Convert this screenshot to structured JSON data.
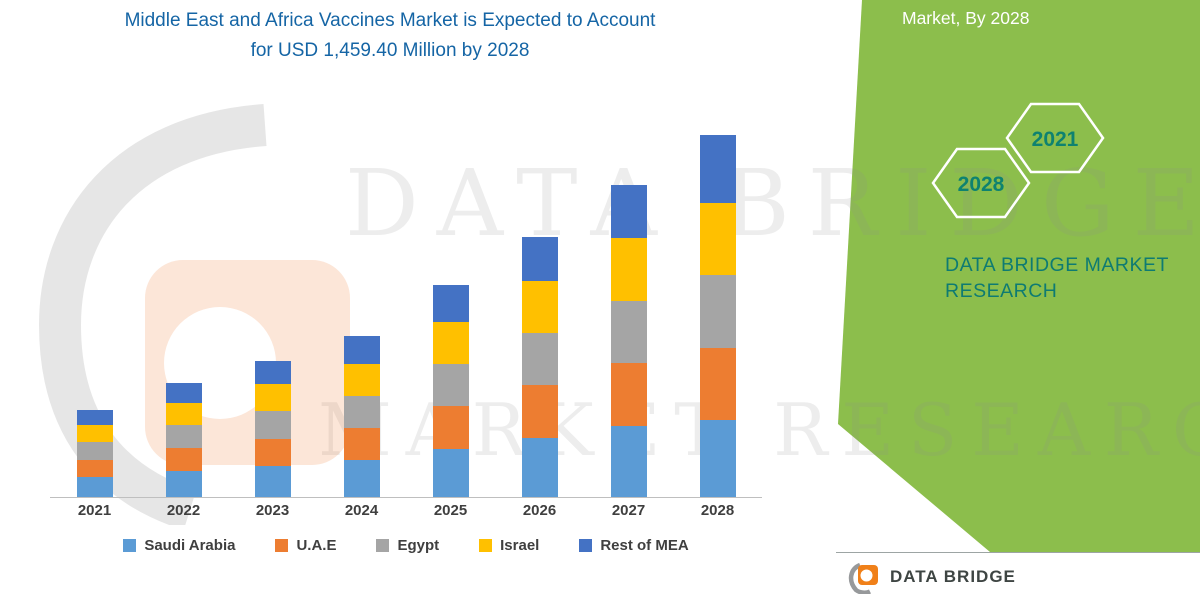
{
  "title": {
    "line1": "Middle East and Africa Vaccines Market is Expected to Account",
    "line2": "for USD 1,459.40 Million by 2028",
    "color": "#1565A5"
  },
  "side_panel": {
    "heading": "Market, By 2028",
    "hexagon_labels": [
      "2028",
      "2021"
    ],
    "brand_line1": "DATA BRIDGE MARKET",
    "brand_line2": "RESEARCH",
    "panel_color": "#8CBE4C",
    "brand_color": "#0E7B72",
    "hexagon_text_color": "#0E8270"
  },
  "watermark": {
    "line1": "DATA BRIDGE",
    "line2": "MARKET RESEARCH"
  },
  "footer": {
    "brand": "DATA BRIDGE"
  },
  "chart_data": {
    "type": "bar",
    "stacked": true,
    "title": "Middle East and Africa Vaccines Market is Expected to Account for USD 1,459.40 Million by 2028",
    "units": "USD Million",
    "categories": [
      "2021",
      "2022",
      "2023",
      "2024",
      "2025",
      "2026",
      "2027",
      "2028"
    ],
    "series": [
      {
        "name": "Saudi Arabia",
        "color": "#5B9BD5",
        "values": [
          80,
          105,
          125,
          148,
          195,
          240,
          288,
          310
        ]
      },
      {
        "name": "U.A.E",
        "color": "#ED7D31",
        "values": [
          70,
          92,
          110,
          130,
          170,
          210,
          252,
          292
        ]
      },
      {
        "name": "Egypt",
        "color": "#A5A5A5",
        "values": [
          70,
          92,
          110,
          130,
          170,
          210,
          252,
          292
        ]
      },
      {
        "name": "Israel",
        "color": "#FFC000",
        "values": [
          70,
          92,
          110,
          130,
          170,
          210,
          252,
          290
        ]
      },
      {
        "name": "Rest of MEA",
        "color": "#4472C4",
        "values": [
          60,
          79,
          95,
          112,
          150,
          180,
          216,
          275.4
        ]
      }
    ],
    "totals": [
      350,
      460,
      550,
      650,
      855,
      1050,
      1260,
      1459.4
    ],
    "values_estimated": true,
    "ylim": [
      0,
      1500
    ],
    "grid": false,
    "legend_position": "bottom",
    "xlabel": "",
    "ylabel": ""
  }
}
